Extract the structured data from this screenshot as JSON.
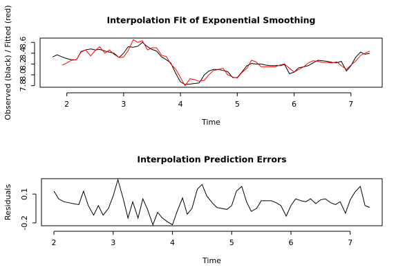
{
  "chart_data": [
    {
      "type": "line",
      "title": "Interpolation Fit of Exponential Smoothing",
      "xlabel": "Time",
      "ylabel": "Observed (black) / Fitted (red)",
      "x": [
        1.75,
        1.83,
        1.92,
        2,
        2.08,
        2.17,
        2.25,
        2.33,
        2.42,
        2.5,
        2.58,
        2.67,
        2.75,
        2.83,
        2.92,
        3,
        3.08,
        3.17,
        3.25,
        3.33,
        3.42,
        3.5,
        3.58,
        3.67,
        3.75,
        3.83,
        3.92,
        4,
        4.08,
        4.17,
        4.25,
        4.33,
        4.42,
        4.5,
        4.58,
        4.67,
        4.75,
        4.83,
        4.92,
        5,
        5.08,
        5.17,
        5.25,
        5.33,
        5.42,
        5.5,
        5.58,
        5.67,
        5.75,
        5.83,
        5.92,
        6,
        6.08,
        6.17,
        6.25,
        6.33,
        6.42,
        6.5,
        6.58,
        6.67,
        6.75,
        6.83,
        6.92,
        7,
        7.08,
        7.17,
        7.25,
        7.33
      ],
      "series": [
        {
          "color": "#000000",
          "values": [
            8.33,
            8.37,
            8.33,
            8.3,
            8.28,
            8.28,
            8.43,
            8.46,
            8.48,
            8.46,
            8.47,
            8.44,
            8.42,
            8.4,
            8.32,
            8.4,
            8.52,
            8.51,
            8.53,
            8.6,
            8.52,
            8.47,
            8.44,
            8.33,
            8.28,
            8.22,
            8.02,
            7.87,
            7.82,
            7.83,
            7.84,
            7.85,
            8.0,
            8.07,
            8.1,
            8.1,
            8.08,
            8.06,
            7.95,
            7.95,
            8.05,
            8.17,
            8.21,
            8.2,
            8.2,
            8.18,
            8.17,
            8.17,
            8.17,
            8.19,
            8.02,
            8.05,
            8.13,
            8.15,
            8.17,
            8.22,
            8.27,
            8.26,
            8.25,
            8.23,
            8.22,
            8.25,
            8.07,
            8.17,
            8.32,
            8.42,
            8.38,
            8.4
          ]
        },
        {
          "color": "#ff0000",
          "values": [
            null,
            null,
            8.18,
            8.22,
            8.27,
            8.28,
            8.42,
            8.46,
            8.35,
            8.45,
            8.52,
            8.4,
            8.46,
            8.38,
            8.32,
            8.33,
            8.45,
            8.65,
            8.6,
            8.63,
            8.46,
            8.5,
            8.5,
            8.36,
            8.34,
            8.2,
            8.1,
            7.95,
            7.8,
            7.93,
            7.91,
            7.88,
            7.9,
            8.0,
            8.08,
            8.1,
            8.12,
            8.0,
            7.96,
            7.94,
            8.04,
            8.12,
            8.27,
            8.24,
            8.15,
            8.15,
            8.15,
            8.15,
            8.18,
            8.2,
            8.12,
            8.05,
            8.1,
            8.15,
            8.22,
            8.26,
            8.25,
            8.23,
            8.23,
            8.22,
            8.24,
            8.17,
            8.1,
            8.18,
            8.25,
            8.36,
            8.4,
            8.44
          ]
        }
      ],
      "xlim": [
        1.53,
        7.55
      ],
      "xticks": [
        2,
        3,
        4,
        5,
        6,
        7
      ],
      "ylim": [
        7.77,
        8.68
      ],
      "yticks": [
        7.8,
        {
          "value": 8,
          "label": "8.0"
        },
        8.2,
        8.4,
        8.6
      ]
    },
    {
      "type": "line",
      "title": "Interpolation Prediction Errors",
      "xlabel": "Time",
      "ylabel": "Residuals",
      "x": [
        2,
        2.08,
        2.17,
        2.25,
        2.33,
        2.42,
        2.5,
        2.58,
        2.67,
        2.75,
        2.83,
        2.92,
        3,
        3.08,
        3.17,
        3.25,
        3.33,
        3.42,
        3.5,
        3.58,
        3.67,
        3.75,
        3.83,
        3.92,
        4,
        4.08,
        4.17,
        4.25,
        4.33,
        4.42,
        4.5,
        4.58,
        4.67,
        4.75,
        4.83,
        4.92,
        5,
        5.08,
        5.17,
        5.25,
        5.33,
        5.42,
        5.5,
        5.58,
        5.67,
        5.75,
        5.83,
        5.92,
        6,
        6.08,
        6.17,
        6.25,
        6.33,
        6.42,
        6.5,
        6.58,
        6.67,
        6.75,
        6.83,
        6.92,
        7,
        7.08,
        7.17,
        7.25,
        7.33
      ],
      "series": [
        {
          "color": "#000000",
          "values": [
            0.13,
            0.05,
            0.02,
            0.01,
            0.0,
            -0.01,
            0.13,
            -0.02,
            -0.12,
            -0.02,
            -0.12,
            -0.05,
            0.08,
            0.25,
            0.05,
            -0.15,
            0.02,
            -0.15,
            0.05,
            -0.06,
            -0.22,
            -0.09,
            -0.15,
            -0.19,
            -0.22,
            -0.08,
            0.06,
            -0.11,
            -0.05,
            0.15,
            0.2,
            0.08,
            0.01,
            -0.04,
            -0.05,
            -0.06,
            -0.02,
            0.13,
            0.18,
            0.02,
            -0.08,
            -0.05,
            0.03,
            0.03,
            0.03,
            0.01,
            -0.02,
            -0.13,
            -0.02,
            0.05,
            0.03,
            0.02,
            0.05,
            0.0,
            0.04,
            0.05,
            0.01,
            -0.01,
            0.02,
            -0.1,
            0.04,
            0.12,
            0.18,
            -0.02,
            -0.04
          ]
        }
      ],
      "xlim": [
        1.79,
        7.54
      ],
      "xticks": [
        2,
        3,
        4,
        5,
        6,
        7
      ],
      "ylim": [
        -0.23,
        0.26
      ],
      "yticks": [
        -0.2,
        0.1
      ]
    }
  ]
}
